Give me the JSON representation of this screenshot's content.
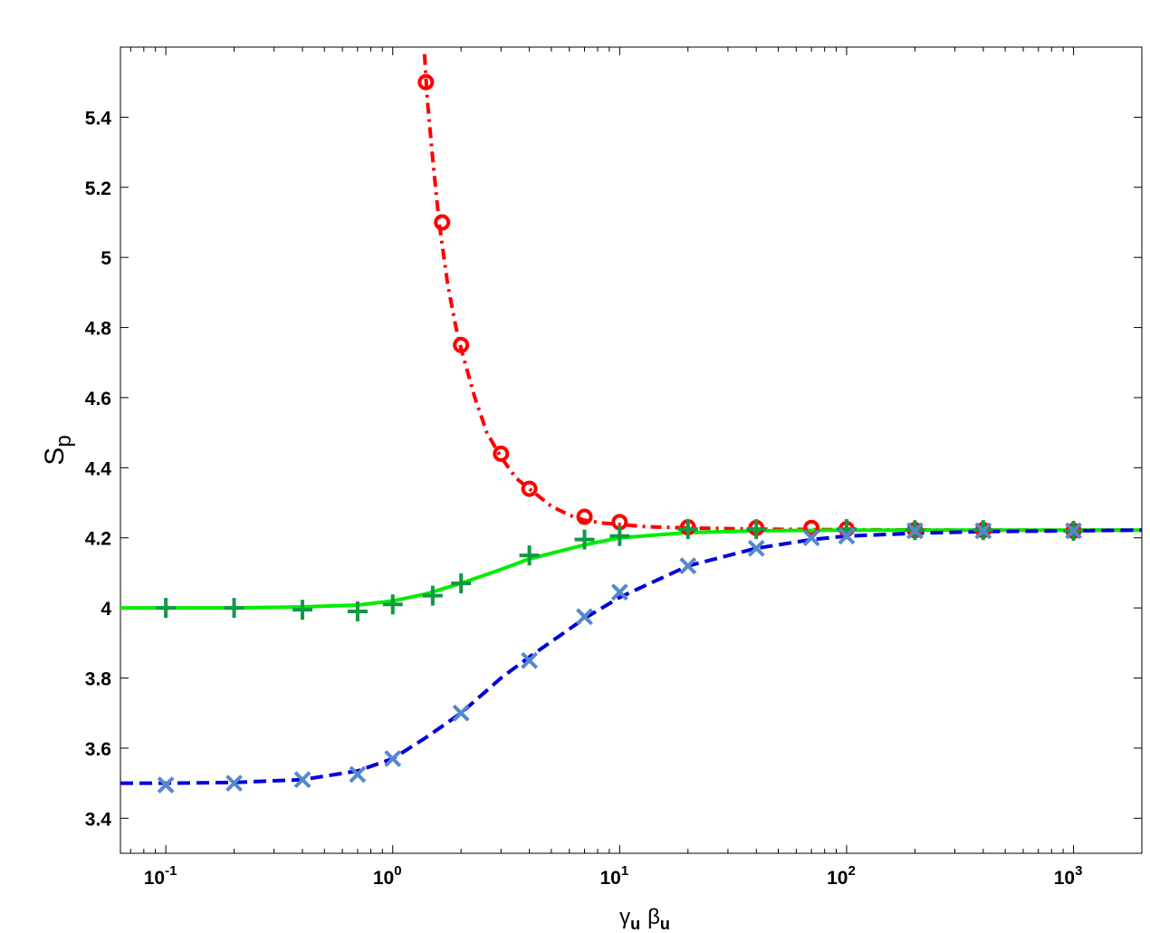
{
  "chart_data": {
    "type": "line",
    "title": "",
    "xscale": "log",
    "xlim": [
      0.0631,
      2000
    ],
    "ylim": [
      3.3,
      5.6
    ],
    "xlabel": {
      "main": "γ",
      "sub": "u",
      "main2": "β",
      "sub2": "u"
    },
    "ylabel": {
      "main": "S",
      "sub": "p"
    },
    "x_ticks": [
      {
        "value": 0.1,
        "base": "10",
        "exp": "-1"
      },
      {
        "value": 1,
        "base": "10",
        "exp": "0"
      },
      {
        "value": 10,
        "base": "10",
        "exp": "1"
      },
      {
        "value": 100,
        "base": "10",
        "exp": "2"
      },
      {
        "value": 1000,
        "base": "10",
        "exp": "3"
      }
    ],
    "y_ticks": [
      "3.4",
      "3.6",
      "3.8",
      "4",
      "4.2",
      "4.4",
      "4.6",
      "4.8",
      "5",
      "5.2",
      "5.4"
    ],
    "colors": {
      "red_line": "#ff0000",
      "red_marker": "#ff0000",
      "green_line": "#00ee00",
      "green_marker": "#119944",
      "blue_line": "#0000dd",
      "blue_marker": "#5588cc"
    },
    "series": [
      {
        "line_style": "dash-dot",
        "marker": "circle",
        "color_key": "red",
        "curve": [
          [
            1.38,
            5.58
          ],
          [
            1.42,
            5.45
          ],
          [
            1.5,
            5.28
          ],
          [
            1.6,
            5.1
          ],
          [
            1.75,
            4.92
          ],
          [
            1.9,
            4.8
          ],
          [
            2.0,
            4.74
          ],
          [
            2.3,
            4.6
          ],
          [
            2.6,
            4.5
          ],
          [
            3.0,
            4.43
          ],
          [
            3.5,
            4.37
          ],
          [
            4.0,
            4.34
          ],
          [
            5.0,
            4.29
          ],
          [
            6.0,
            4.265
          ],
          [
            7.0,
            4.25
          ],
          [
            8.5,
            4.242
          ],
          [
            10,
            4.238
          ],
          [
            13,
            4.232
          ],
          [
            20,
            4.228
          ],
          [
            40,
            4.225
          ],
          [
            100,
            4.223
          ],
          [
            300,
            4.222
          ],
          [
            2000,
            4.222
          ]
        ],
        "points": [
          [
            1.4,
            5.5
          ],
          [
            1.65,
            5.1
          ],
          [
            2.0,
            4.75
          ],
          [
            3.0,
            4.44
          ],
          [
            4.0,
            4.34
          ],
          [
            7.0,
            4.26
          ],
          [
            10,
            4.245
          ],
          [
            20,
            4.23
          ],
          [
            40,
            4.228
          ],
          [
            70,
            4.228
          ],
          [
            100,
            4.225
          ],
          [
            200,
            4.222
          ],
          [
            400,
            4.222
          ],
          [
            1000,
            4.22
          ]
        ]
      },
      {
        "line_style": "solid",
        "marker": "plus",
        "color_key": "green",
        "curve": [
          [
            0.0631,
            4.0
          ],
          [
            0.1,
            4.0
          ],
          [
            0.2,
            4.0
          ],
          [
            0.4,
            4.003
          ],
          [
            0.7,
            4.008
          ],
          [
            1.0,
            4.02
          ],
          [
            1.4,
            4.04
          ],
          [
            2.0,
            4.07
          ],
          [
            3.0,
            4.11
          ],
          [
            4.0,
            4.14
          ],
          [
            7.0,
            4.18
          ],
          [
            10,
            4.2
          ],
          [
            20,
            4.215
          ],
          [
            40,
            4.22
          ],
          [
            100,
            4.222
          ],
          [
            2000,
            4.222
          ]
        ],
        "points": [
          [
            0.1,
            4.0
          ],
          [
            0.2,
            4.0
          ],
          [
            0.4,
            3.995
          ],
          [
            0.7,
            3.99
          ],
          [
            1.0,
            4.01
          ],
          [
            1.5,
            4.035
          ],
          [
            2.0,
            4.07
          ],
          [
            4.0,
            4.15
          ],
          [
            7.0,
            4.195
          ],
          [
            10,
            4.205
          ],
          [
            20,
            4.225
          ],
          [
            40,
            4.225
          ],
          [
            100,
            4.225
          ],
          [
            200,
            4.222
          ],
          [
            400,
            4.222
          ],
          [
            1000,
            4.22
          ]
        ]
      },
      {
        "line_style": "dashed",
        "marker": "x",
        "color_key": "blue",
        "curve": [
          [
            0.0631,
            3.5
          ],
          [
            0.1,
            3.5
          ],
          [
            0.2,
            3.502
          ],
          [
            0.4,
            3.51
          ],
          [
            0.7,
            3.535
          ],
          [
            1.0,
            3.57
          ],
          [
            1.4,
            3.63
          ],
          [
            2.0,
            3.7
          ],
          [
            3.0,
            3.8
          ],
          [
            4.0,
            3.86
          ],
          [
            7.0,
            3.97
          ],
          [
            10,
            4.03
          ],
          [
            20,
            4.12
          ],
          [
            40,
            4.17
          ],
          [
            70,
            4.195
          ],
          [
            100,
            4.205
          ],
          [
            200,
            4.213
          ],
          [
            400,
            4.218
          ],
          [
            1000,
            4.22
          ],
          [
            2000,
            4.222
          ]
        ],
        "points": [
          [
            0.1,
            3.495
          ],
          [
            0.2,
            3.5
          ],
          [
            0.4,
            3.51
          ],
          [
            0.7,
            3.525
          ],
          [
            1.0,
            3.57
          ],
          [
            2.0,
            3.7
          ],
          [
            4.0,
            3.85
          ],
          [
            7.0,
            3.975
          ],
          [
            10,
            4.045
          ],
          [
            20,
            4.12
          ],
          [
            40,
            4.17
          ],
          [
            70,
            4.2
          ],
          [
            100,
            4.205
          ],
          [
            200,
            4.22
          ],
          [
            400,
            4.22
          ],
          [
            1000,
            4.22
          ]
        ]
      }
    ]
  }
}
